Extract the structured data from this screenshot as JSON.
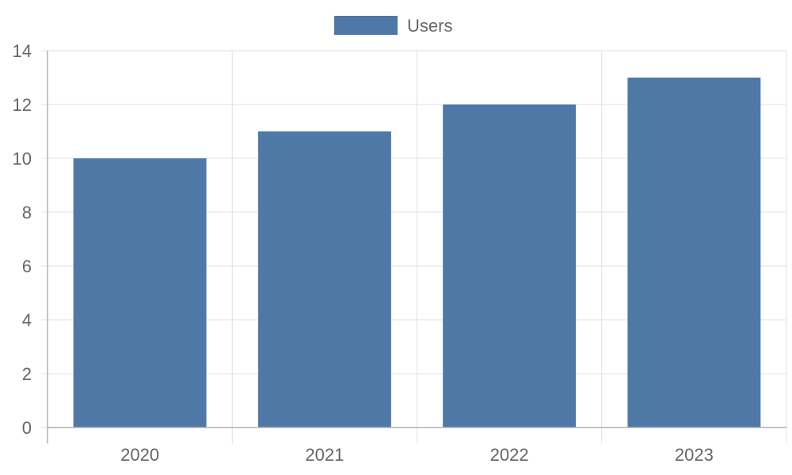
{
  "chart_data": {
    "type": "bar",
    "categories": [
      "2020",
      "2021",
      "2022",
      "2023"
    ],
    "series": [
      {
        "name": "Users",
        "values": [
          10,
          11,
          12,
          13
        ]
      }
    ],
    "title": "",
    "xlabel": "",
    "ylabel": "",
    "ylim": [
      0,
      14
    ],
    "y_ticks": [
      "0",
      "2",
      "4",
      "6",
      "8",
      "10",
      "12",
      "14"
    ],
    "grid": true,
    "legend_position": "top-center"
  },
  "colors": {
    "bar": "#4e79a7",
    "grid": "#e0e0e0",
    "axis": "#b0b0b0",
    "text": "#666666"
  }
}
